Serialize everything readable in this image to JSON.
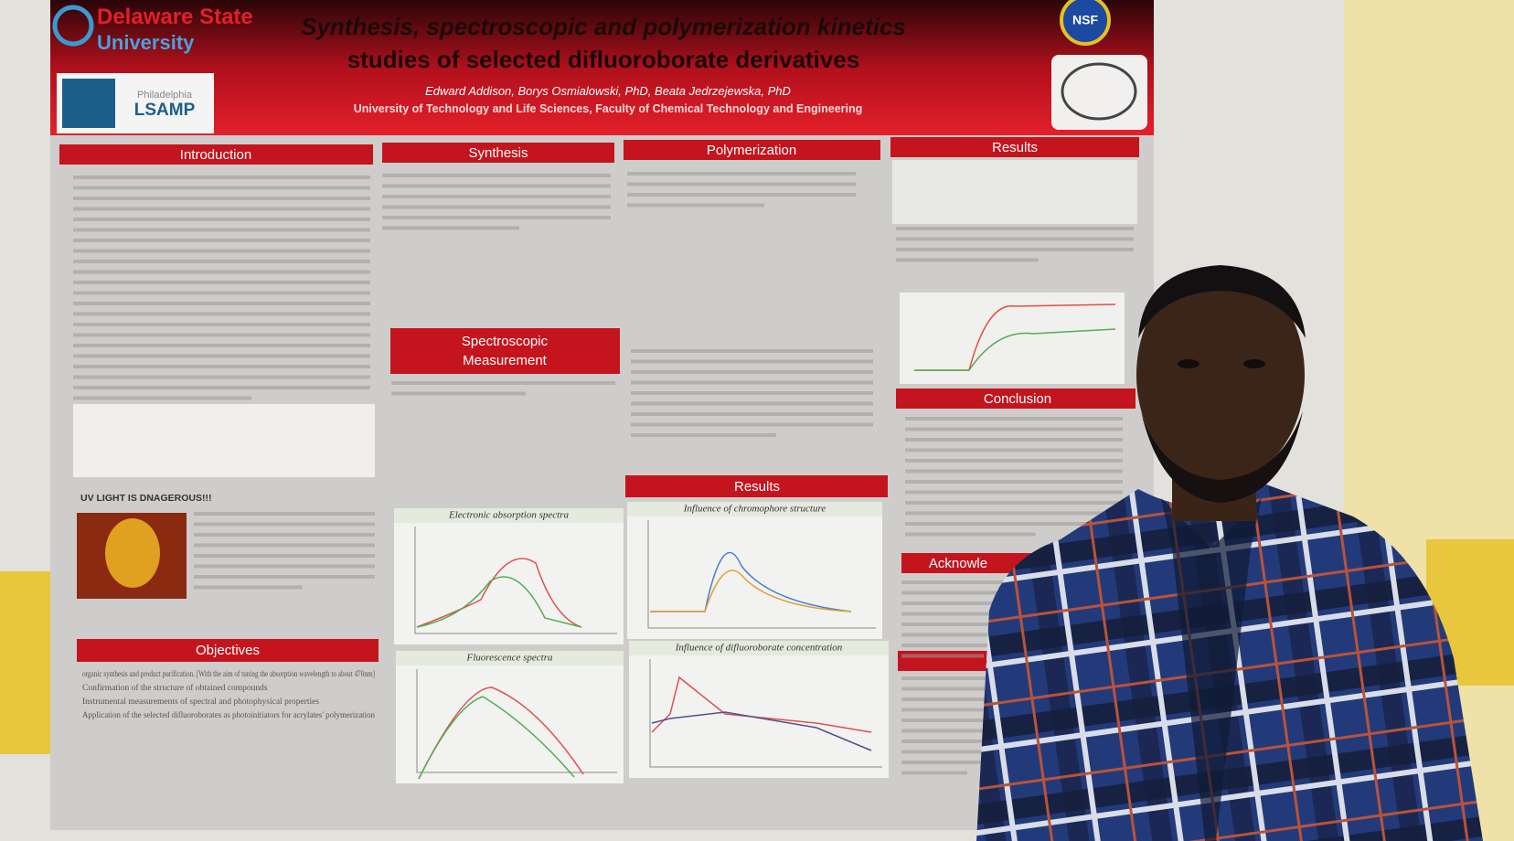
{
  "header": {
    "university": [
      "Delaware State",
      "University"
    ],
    "program": [
      "Philadelphia",
      "LSAMP"
    ],
    "title": [
      "Synthesis, spectroscopic and polymerization kinetics",
      "studies of selected difluoroborate derivatives"
    ],
    "authors": "Edward Addison, Borys Osmialowski, PhD, Beata Jedrzejewska, PhD",
    "affiliation": "University of Technology and Life Sciences, Faculty of Chemical Technology and Engineering",
    "nsf": "NSF"
  },
  "sections": {
    "introduction": "Introduction",
    "synthesis": "Synthesis",
    "polymerization": "Polymerization",
    "results_top": "Results",
    "spectroscopic": [
      "Spectroscopic",
      "Measurement"
    ],
    "results_middle": "Results",
    "conclusion": "Conclusion",
    "objectives": "Objectives",
    "acknowledgements": "Acknowle"
  },
  "warning": "UV LIGHT IS DNAGEROUS!!!",
  "objectives": [
    "organic synthesis and product purification. [With the aim of tuning the absorption wavelength to about 470nm]",
    "Confirmation of the structure of obtained compounds",
    "Instrumental measurements of spectral and photophysical properties",
    "Application of the selected difluoroborates as photoinitiators for acrylates' polymerization"
  ],
  "chart_titles": [
    "Electronic absorption spectra",
    "Influence of chromophore structure",
    "Fluorescence spectra",
    "Influence of difluoroborate concentration"
  ]
}
